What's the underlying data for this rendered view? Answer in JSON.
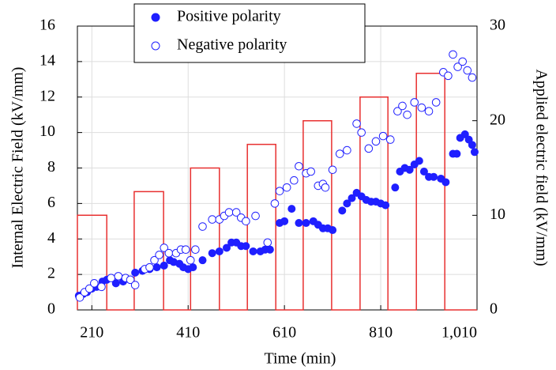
{
  "chart_data": {
    "type": "scatter",
    "x_label": "Time (min)",
    "y_label": "Internal Electric Field (kV/mm)",
    "y2_label": "Applied electric field (kV/mm)",
    "xlim": [
      180,
      1010
    ],
    "xticks": [
      210,
      410,
      610,
      810,
      {
        "value": 1010,
        "label": "1,010"
      }
    ],
    "ylim": [
      0,
      16
    ],
    "yticks": [
      0,
      2,
      4,
      6,
      8,
      10,
      12,
      14,
      16
    ],
    "y2lim": [
      0,
      30
    ],
    "y2ticks": [
      0,
      10,
      20,
      30
    ],
    "grid": true,
    "legend": "top-center",
    "series": [
      {
        "name": "Positive polarity",
        "color": "#1f1fff",
        "filled": true,
        "x": [
          183,
          192,
          200,
          210,
          220,
          232,
          241,
          260,
          275,
          290,
          300,
          315,
          330,
          345,
          360,
          372,
          380,
          392,
          400,
          410,
          420,
          440,
          460,
          475,
          490,
          500,
          510,
          520,
          530,
          545,
          560,
          570,
          580,
          600,
          610,
          625,
          640,
          655,
          670,
          680,
          690,
          700,
          710,
          730,
          740,
          750,
          760,
          770,
          780,
          790,
          800,
          810,
          820,
          840,
          850,
          860,
          870,
          880,
          890,
          900,
          910,
          920,
          935,
          945,
          960,
          968,
          975,
          985,
          993,
          1000,
          1005
        ],
        "values": [
          0.8,
          0.9,
          1.0,
          1.2,
          1.3,
          1.6,
          1.7,
          1.5,
          1.6,
          1.7,
          2.1,
          2.2,
          2.3,
          2.4,
          2.5,
          2.8,
          2.7,
          2.6,
          2.4,
          2.3,
          2.4,
          2.8,
          3.2,
          3.3,
          3.5,
          3.8,
          3.8,
          3.6,
          3.6,
          3.3,
          3.3,
          3.4,
          3.4,
          4.9,
          5.0,
          5.7,
          4.9,
          4.9,
          5.0,
          4.8,
          4.6,
          4.6,
          4.5,
          5.6,
          6.0,
          6.3,
          6.6,
          6.4,
          6.2,
          6.1,
          6.1,
          6.0,
          5.9,
          6.9,
          7.8,
          8.0,
          7.9,
          8.2,
          8.4,
          7.8,
          7.5,
          7.5,
          7.4,
          7.2,
          8.8,
          8.8,
          9.7,
          9.9,
          9.6,
          9.3,
          8.9
        ]
      },
      {
        "name": "Negative polarity",
        "color": "#1f1fff",
        "filled": false,
        "x": [
          185,
          195,
          205,
          215,
          230,
          250,
          265,
          280,
          290,
          300,
          320,
          330,
          340,
          350,
          360,
          370,
          385,
          395,
          405,
          415,
          425,
          440,
          460,
          475,
          485,
          495,
          510,
          520,
          530,
          550,
          575,
          590,
          600,
          615,
          630,
          640,
          655,
          665,
          680,
          690,
          695,
          710,
          725,
          740,
          760,
          770,
          785,
          800,
          815,
          830,
          845,
          855,
          865,
          880,
          895,
          910,
          925,
          940,
          950,
          960,
          970,
          980,
          990,
          1000
        ],
        "values": [
          0.7,
          1.0,
          1.2,
          1.5,
          1.3,
          1.8,
          1.9,
          1.8,
          1.7,
          1.4,
          2.3,
          2.4,
          2.8,
          3.1,
          3.5,
          3.2,
          3.2,
          3.4,
          3.4,
          2.8,
          3.4,
          4.7,
          5.1,
          5.1,
          5.3,
          5.5,
          5.5,
          5.2,
          5.0,
          5.3,
          3.8,
          6.0,
          6.7,
          6.9,
          7.3,
          8.1,
          7.7,
          7.8,
          7.0,
          7.1,
          6.9,
          7.9,
          8.8,
          9.0,
          10.5,
          10.0,
          9.1,
          9.5,
          9.8,
          9.6,
          11.2,
          11.5,
          11.0,
          11.7,
          11.4,
          11.2,
          11.7,
          13.4,
          13.2,
          14.4,
          13.7,
          14.0,
          13.5,
          13.1
        ]
      }
    ],
    "applied_field": {
      "type": "line",
      "color": "#e83030",
      "axis": "y2",
      "x": [
        180,
        180,
        241,
        241,
        298,
        298,
        359,
        359,
        415,
        415,
        475,
        475,
        533,
        533,
        592,
        592,
        649,
        649,
        708,
        708,
        767,
        767,
        825,
        825,
        884,
        884,
        943,
        943,
        1010
      ],
      "values": [
        0,
        10,
        10,
        0,
        0,
        12.5,
        12.5,
        0,
        0,
        15,
        15,
        0,
        0,
        17.5,
        17.5,
        0,
        0,
        20,
        20,
        0,
        0,
        22.5,
        22.5,
        0,
        0,
        25,
        25,
        0,
        0
      ]
    }
  }
}
